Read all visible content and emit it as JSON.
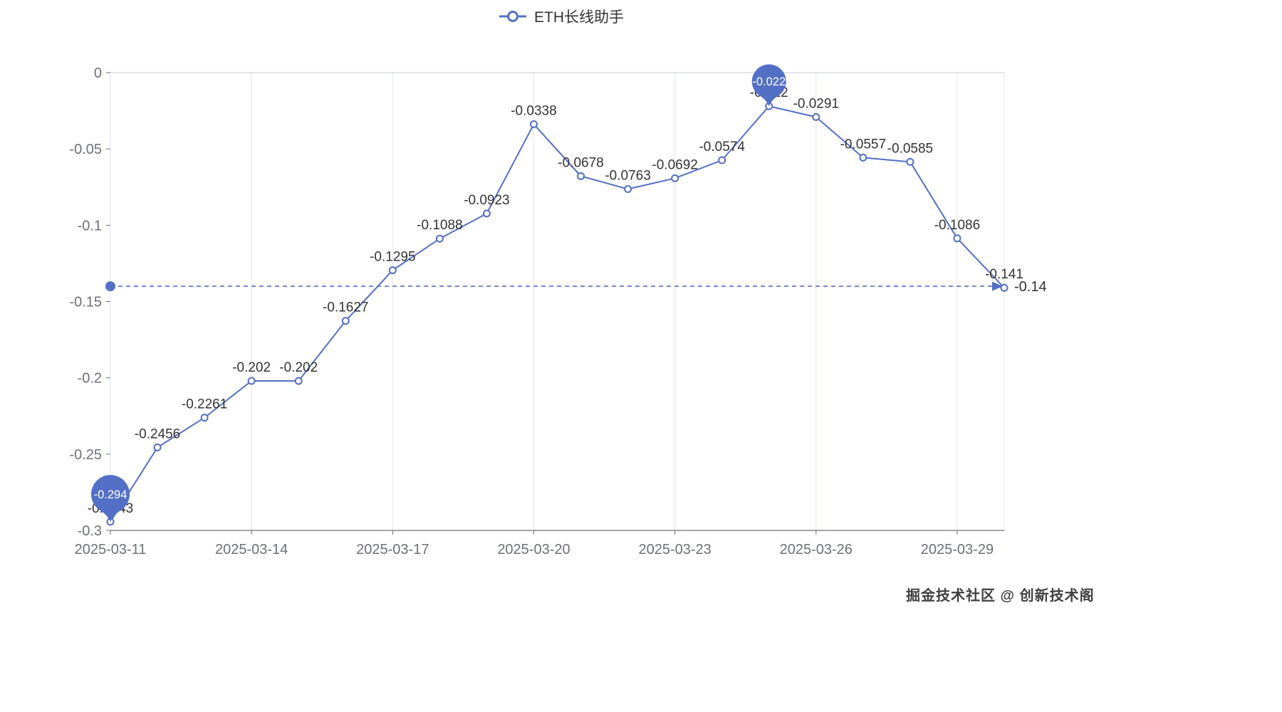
{
  "legend": {
    "label": "ETH长线助手"
  },
  "watermark": "掘金技术社区 @ 创新技术阁",
  "colors": {
    "accent": "#5470c6",
    "label": "#333333",
    "axis": "#6e7079",
    "grid": "#e0e6f1",
    "top_border": "#c9ced8",
    "pin_text": "#ffffff"
  },
  "chart_data": {
    "type": "line",
    "series_name": "ETH长线助手",
    "x": [
      "2025-03-11",
      "2025-03-12",
      "2025-03-13",
      "2025-03-14",
      "2025-03-15",
      "2025-03-16",
      "2025-03-17",
      "2025-03-18",
      "2025-03-19",
      "2025-03-20",
      "2025-03-21",
      "2025-03-22",
      "2025-03-23",
      "2025-03-24",
      "2025-03-25",
      "2025-03-26",
      "2025-03-27",
      "2025-03-28",
      "2025-03-29",
      "2025-03-30"
    ],
    "values": [
      -0.2943,
      -0.2456,
      -0.2261,
      -0.202,
      -0.202,
      -0.1627,
      -0.1295,
      -0.1088,
      -0.0923,
      -0.0338,
      -0.0678,
      -0.0763,
      -0.0692,
      -0.0574,
      -0.022,
      -0.0291,
      -0.0557,
      -0.0585,
      -0.1086,
      -0.141
    ],
    "labels": [
      "-0.2943",
      "-0.2456",
      "-0.2261",
      "-0.202",
      "-0.202",
      "-0.1627",
      "-0.1295",
      "-0.1088",
      "-0.0923",
      "-0.0338",
      "-0.0678",
      "-0.0763",
      "-0.0692",
      "-0.0574",
      "-0.022",
      "-0.0291",
      "-0.0557",
      "-0.0585",
      "-0.1086",
      "-0.141"
    ],
    "x_tick_labels": [
      "2025-03-11",
      "2025-03-14",
      "2025-03-17",
      "2025-03-20",
      "2025-03-23",
      "2025-03-26",
      "2025-03-29"
    ],
    "y_ticks": [
      0,
      -0.05,
      -0.1,
      -0.15,
      -0.2,
      -0.25,
      -0.3
    ],
    "y_tick_labels": [
      "0",
      "-0.05",
      "-0.1",
      "-0.15",
      "-0.2",
      "-0.25",
      "-0.3"
    ],
    "ylim": [
      -0.3,
      0
    ],
    "grid": "vertical-only",
    "legend_position": "top-center",
    "mark_line": {
      "value": -0.14,
      "label": "-0.14"
    },
    "mark_points": [
      {
        "index": 14,
        "label": "-0.022",
        "type": "max"
      },
      {
        "index": 0,
        "label": "-0.294",
        "type": "min"
      }
    ]
  }
}
